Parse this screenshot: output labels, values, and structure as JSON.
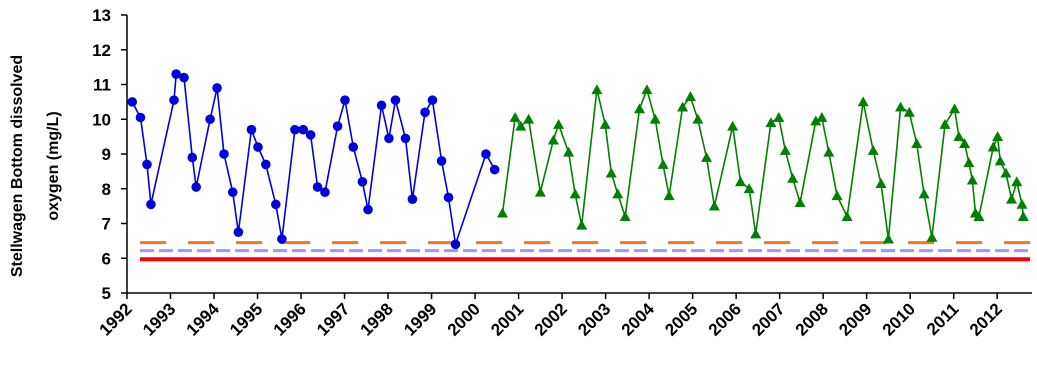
{
  "chart_data": {
    "type": "line",
    "ylabel_lines": [
      "Stellwagen Bottom dissolved",
      "oxygen (mg/L)"
    ],
    "xlabel": "",
    "ylim": [
      5,
      13
    ],
    "yticks": [
      "5",
      "6",
      "7",
      "8",
      "9",
      "10",
      "11",
      "12",
      "13"
    ],
    "xlim": [
      1992,
      2012.8
    ],
    "xticks": [
      "1992",
      "1993",
      "1994",
      "1995",
      "1996",
      "1997",
      "1998",
      "1999",
      "2000",
      "2001",
      "2002",
      "2003",
      "2004",
      "2005",
      "2006",
      "2007",
      "2008",
      "2009",
      "2010",
      "2011",
      "2012"
    ],
    "grid": false,
    "series": [
      {
        "marker": "circle",
        "color": "#0000dd",
        "points": [
          [
            1992.12,
            10.5
          ],
          [
            1992.31,
            10.05
          ],
          [
            1992.46,
            8.7
          ],
          [
            1992.55,
            7.55
          ],
          [
            1993.08,
            10.55
          ],
          [
            1993.13,
            11.3
          ],
          [
            1993.31,
            11.2
          ],
          [
            1993.5,
            8.9
          ],
          [
            1993.59,
            8.05
          ],
          [
            1993.91,
            10.0
          ],
          [
            1994.07,
            10.9
          ],
          [
            1994.23,
            9.0
          ],
          [
            1994.43,
            7.9
          ],
          [
            1994.56,
            6.75
          ],
          [
            1994.86,
            9.7
          ],
          [
            1995.01,
            9.2
          ],
          [
            1995.19,
            8.7
          ],
          [
            1995.42,
            7.55
          ],
          [
            1995.56,
            6.55
          ],
          [
            1995.86,
            9.7
          ],
          [
            1996.05,
            9.7
          ],
          [
            1996.22,
            9.55
          ],
          [
            1996.38,
            8.05
          ],
          [
            1996.55,
            7.9
          ],
          [
            1996.84,
            9.8
          ],
          [
            1997.01,
            10.55
          ],
          [
            1997.2,
            9.2
          ],
          [
            1997.41,
            8.2
          ],
          [
            1997.54,
            7.4
          ],
          [
            1997.85,
            10.4
          ],
          [
            1998.02,
            9.45
          ],
          [
            1998.17,
            10.55
          ],
          [
            1998.4,
            9.45
          ],
          [
            1998.56,
            7.7
          ],
          [
            1998.85,
            10.2
          ],
          [
            1999.02,
            10.55
          ],
          [
            1999.23,
            8.8
          ],
          [
            1999.39,
            7.75
          ],
          [
            1999.55,
            6.4
          ],
          [
            2000.25,
            9.0
          ],
          [
            2000.45,
            8.55
          ]
        ]
      },
      {
        "marker": "triangle",
        "color": "#008000",
        "points": [
          [
            2000.63,
            7.3
          ],
          [
            2000.92,
            10.05
          ],
          [
            2001.05,
            9.8
          ],
          [
            2001.23,
            10.0
          ],
          [
            2001.5,
            7.9
          ],
          [
            2001.8,
            9.4
          ],
          [
            2001.92,
            9.85
          ],
          [
            2002.15,
            9.05
          ],
          [
            2002.3,
            7.85
          ],
          [
            2002.45,
            6.95
          ],
          [
            2002.8,
            10.85
          ],
          [
            2002.99,
            9.85
          ],
          [
            2003.13,
            8.45
          ],
          [
            2003.28,
            7.85
          ],
          [
            2003.45,
            7.2
          ],
          [
            2003.78,
            10.3
          ],
          [
            2003.95,
            10.85
          ],
          [
            2004.14,
            10.0
          ],
          [
            2004.32,
            8.7
          ],
          [
            2004.46,
            7.8
          ],
          [
            2004.77,
            10.35
          ],
          [
            2004.95,
            10.65
          ],
          [
            2005.12,
            10.0
          ],
          [
            2005.32,
            8.9
          ],
          [
            2005.5,
            7.5
          ],
          [
            2005.92,
            9.8
          ],
          [
            2006.1,
            8.2
          ],
          [
            2006.3,
            8.0
          ],
          [
            2006.45,
            6.7
          ],
          [
            2006.8,
            9.9
          ],
          [
            2006.98,
            10.05
          ],
          [
            2007.13,
            9.1
          ],
          [
            2007.3,
            8.3
          ],
          [
            2007.47,
            7.6
          ],
          [
            2007.83,
            9.95
          ],
          [
            2007.97,
            10.05
          ],
          [
            2008.13,
            9.05
          ],
          [
            2008.32,
            7.8
          ],
          [
            2008.55,
            7.2
          ],
          [
            2008.92,
            10.5
          ],
          [
            2009.15,
            9.1
          ],
          [
            2009.33,
            8.15
          ],
          [
            2009.5,
            6.55
          ],
          [
            2009.78,
            10.35
          ],
          [
            2009.98,
            10.2
          ],
          [
            2010.15,
            9.3
          ],
          [
            2010.32,
            7.85
          ],
          [
            2010.5,
            6.6
          ],
          [
            2010.8,
            9.85
          ],
          [
            2011.02,
            10.3
          ],
          [
            2011.12,
            9.5
          ],
          [
            2011.25,
            9.3
          ],
          [
            2011.35,
            8.75
          ],
          [
            2011.43,
            8.25
          ],
          [
            2011.5,
            7.3
          ],
          [
            2011.58,
            7.2
          ],
          [
            2011.91,
            9.2
          ],
          [
            2012.01,
            9.5
          ],
          [
            2012.07,
            8.8
          ],
          [
            2012.2,
            8.45
          ],
          [
            2012.33,
            7.7
          ],
          [
            2012.45,
            8.2
          ],
          [
            2012.57,
            7.55
          ],
          [
            2012.6,
            7.2
          ]
        ]
      }
    ],
    "reference_lines": [
      {
        "y": 6.45,
        "color": "#f07a20",
        "style": "dashed"
      },
      {
        "y": 6.22,
        "color": "#9999ff",
        "style": "dashed"
      },
      {
        "y": 5.97,
        "color": "#ff0000",
        "style": "solid"
      }
    ]
  }
}
